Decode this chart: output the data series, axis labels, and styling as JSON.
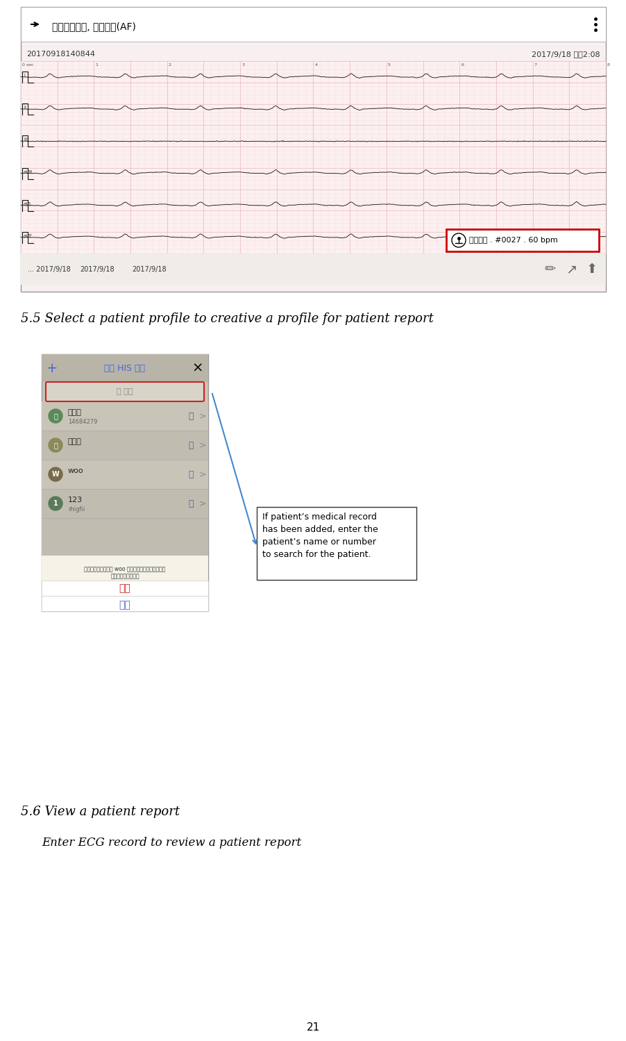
{
  "bg_color": "#ffffff",
  "fig_width": 9.03,
  "fig_height": 14.99,
  "section_55_title": "5.5 Select a patient profile to creative a profile for patient report",
  "section_56_title": "5.6 View a patient report",
  "section_56_subtitle": "Enter ECG record to review a patient report",
  "page_number": "21",
  "ecg_header_text": "肢導信號缺失, 心房顏動(AF)",
  "ecg_id": "20170918140844",
  "ecg_date": "2017/9/18 下午2:08",
  "ecg_record_label": "快速記錄 . #0027 . 60 bpm",
  "date_labels": [
    "... 2017/9/18",
    "2017/9/18",
    "2017/9/18"
  ],
  "phone_title": "查詢 HIS 患者",
  "search_placeholder": "搜尋",
  "patients": [
    {
      "initial": "陳",
      "name": "陳先生",
      "id": "14684279",
      "color": "#5a8a5a"
    },
    {
      "initial": "未",
      "name": "未命名",
      "id": "",
      "color": "#8a8a5a"
    },
    {
      "initial": "W",
      "name": "woo",
      "id": "",
      "color": "#7a6a4a"
    },
    {
      "initial": "1",
      "name": "123",
      "id": "rhigfii",
      "color": "#5a7a5a"
    }
  ],
  "dialog_text": "目前心電圖將更改到 woo 名下，更改後將不允許再次\n修改，確認此操作？",
  "confirm_btn": "確定",
  "cancel_btn": "取消",
  "callout_text": "If patient’s medical record\nhas been added, enter the\npatient’s name or number\nto search for the patient.",
  "ecg_bg": "#fdf0f0",
  "ecg_grid_color": "#e8b0b0",
  "phone_bg": "#c8c4b8",
  "phone_header_bg": "#b8b4a8",
  "search_bg": "#d8d4c8",
  "dialog_bg": "#f5f3e8",
  "confirm_color": "#cc2222",
  "cancel_color": "#4466cc"
}
